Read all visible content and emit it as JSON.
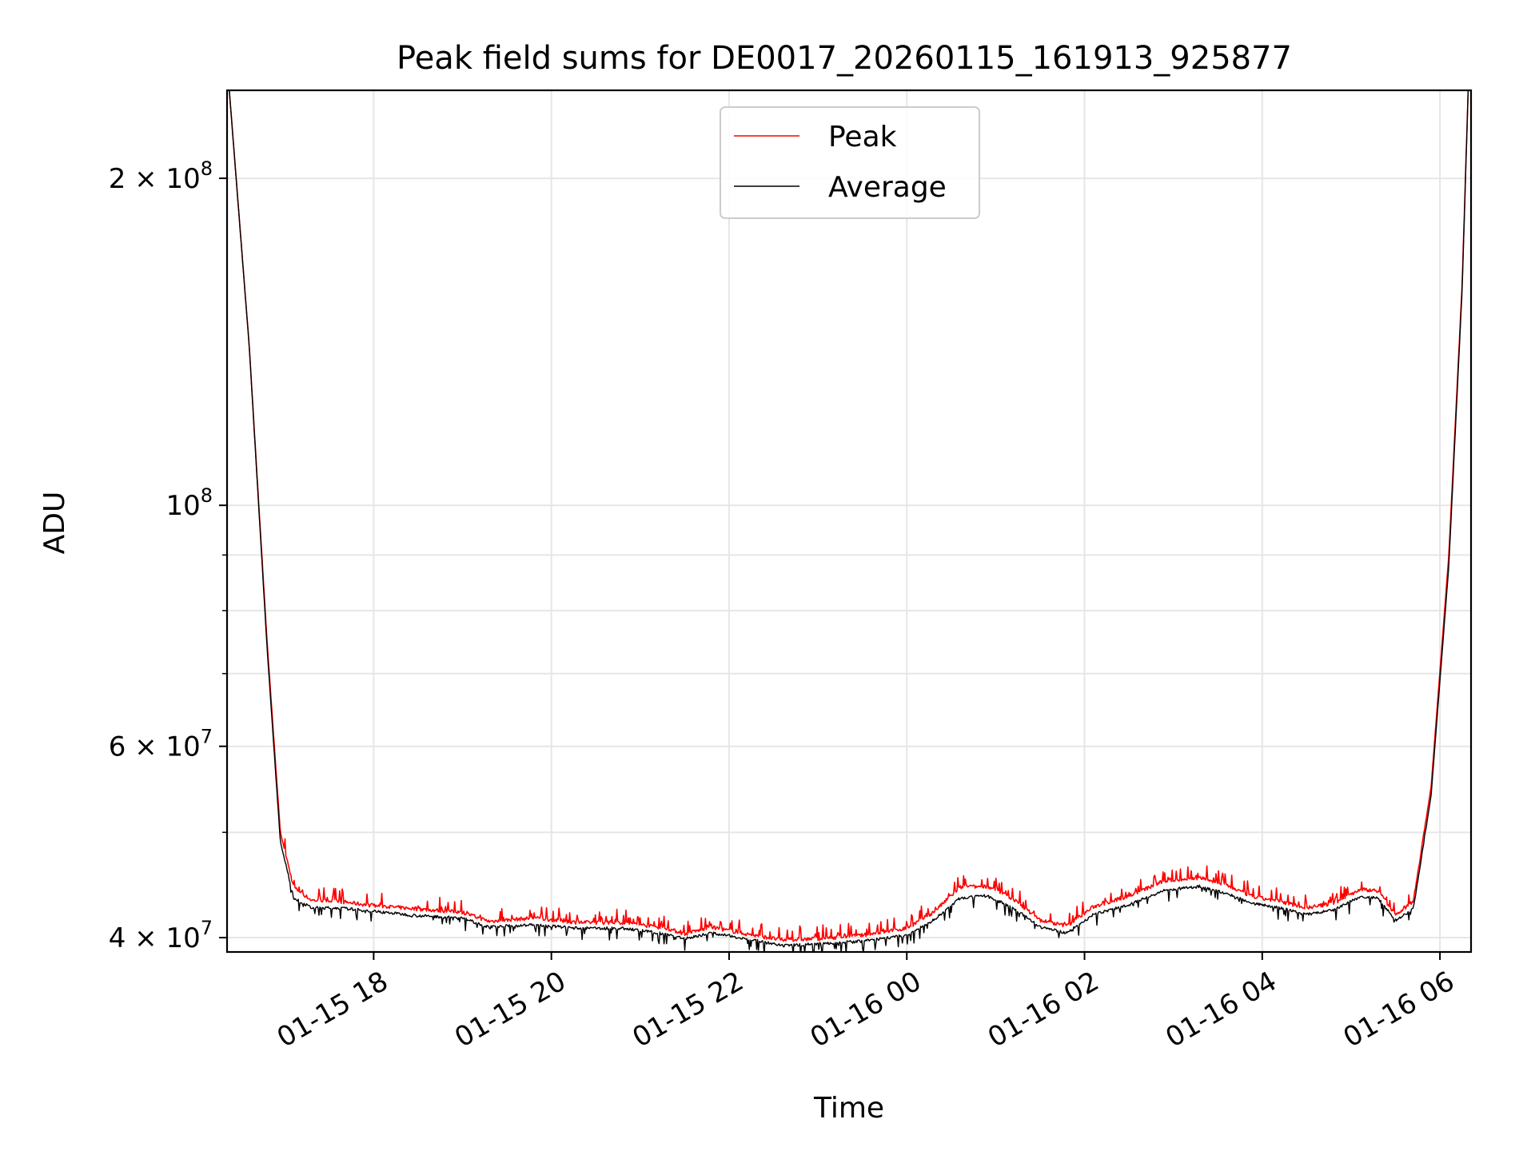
{
  "chart_data": {
    "type": "line",
    "title": "Peak field sums for DE0017_20260115_161913_925877",
    "xlabel": "Time",
    "ylabel": "ADU",
    "yscale": "log",
    "ylim": [
      38800000,
      241000000
    ],
    "xlim_hours": [
      16.35,
      30.35
    ],
    "grid": true,
    "legend_position": "upper center",
    "x_ticks": [
      {
        "hour": 18,
        "label": "01-15 18"
      },
      {
        "hour": 20,
        "label": "01-15 20"
      },
      {
        "hour": 22,
        "label": "01-15 22"
      },
      {
        "hour": 24,
        "label": "01-16 00"
      },
      {
        "hour": 26,
        "label": "01-16 02"
      },
      {
        "hour": 28,
        "label": "01-16 04"
      },
      {
        "hour": 30,
        "label": "01-16 06"
      }
    ],
    "y_ticks": [
      {
        "value": 40000000,
        "base": "4 × 10",
        "exp": "7"
      },
      {
        "value": 60000000,
        "base": "6 × 10",
        "exp": "7"
      },
      {
        "value": 100000000,
        "base": "10",
        "exp": "8"
      },
      {
        "value": 200000000,
        "base": "2 × 10",
        "exp": "8"
      }
    ],
    "y_minor_ticks": [
      50000000,
      70000000,
      80000000,
      90000000
    ],
    "series": [
      {
        "name": "Peak",
        "color": "#ff0000",
        "hours": [
          16.36,
          16.6,
          16.8,
          16.95,
          17.1,
          17.3,
          17.6,
          18.0,
          18.5,
          19.0,
          19.3,
          19.8,
          20.3,
          20.8,
          21.3,
          21.5,
          21.8,
          22.2,
          22.6,
          23.0,
          23.5,
          24.0,
          24.3,
          24.6,
          24.9,
          25.2,
          25.5,
          25.8,
          26.1,
          26.5,
          26.9,
          27.3,
          27.6,
          27.9,
          28.2,
          28.5,
          28.8,
          29.1,
          29.3,
          29.5,
          29.7,
          29.9,
          30.1,
          30.25,
          30.33
        ],
        "values": [
          250000000,
          140000000,
          75000000,
          50000000,
          44500000,
          43300000,
          43200000,
          42800000,
          42500000,
          42200000,
          41400000,
          41700000,
          41300000,
          41300000,
          40800000,
          40300000,
          40900000,
          40300000,
          39800000,
          39900000,
          40200000,
          40800000,
          42200000,
          44500000,
          44600000,
          43400000,
          41500000,
          41000000,
          42700000,
          43700000,
          45100000,
          45400000,
          44700000,
          43600000,
          43200000,
          42600000,
          43000000,
          44300000,
          44200000,
          42000000,
          43200000,
          55000000,
          90000000,
          160000000,
          260000000
        ]
      },
      {
        "name": "Average",
        "color": "#000000",
        "hours": [
          16.36,
          16.6,
          16.8,
          16.95,
          17.1,
          17.3,
          17.6,
          18.0,
          18.5,
          19.0,
          19.3,
          19.8,
          20.3,
          20.8,
          21.3,
          21.5,
          21.8,
          22.2,
          22.6,
          23.0,
          23.5,
          24.0,
          24.3,
          24.6,
          24.9,
          25.2,
          25.5,
          25.8,
          26.1,
          26.5,
          26.9,
          27.3,
          27.6,
          27.9,
          28.2,
          28.5,
          28.8,
          29.1,
          29.3,
          29.5,
          29.7,
          29.9,
          30.1,
          30.25,
          30.33
        ],
        "values": [
          250000000,
          140000000,
          74000000,
          49000000,
          43500000,
          42600000,
          42600000,
          42300000,
          41900000,
          41700000,
          40900000,
          41100000,
          40800000,
          40800000,
          40300000,
          39900000,
          40400000,
          39900000,
          39300000,
          39500000,
          39700000,
          40200000,
          41500000,
          43500000,
          43700000,
          42600000,
          40900000,
          40400000,
          42000000,
          42900000,
          44200000,
          44600000,
          43900000,
          43000000,
          42600000,
          42000000,
          42400000,
          43600000,
          43500000,
          41500000,
          42500000,
          54000000,
          88000000,
          158000000,
          260000000
        ]
      }
    ]
  }
}
